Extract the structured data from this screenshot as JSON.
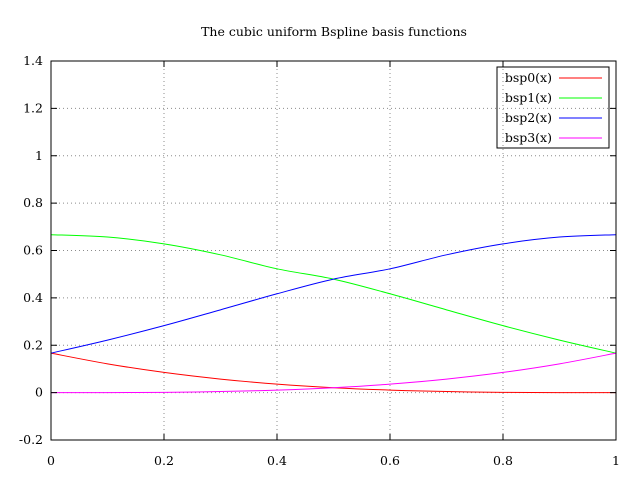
{
  "chart_data": {
    "type": "line",
    "title": "The cubic uniform Bspline basis functions",
    "xlabel": "",
    "ylabel": "",
    "xlim": [
      0,
      1
    ],
    "ylim": [
      -0.2,
      1.4
    ],
    "xticks": [
      0,
      0.2,
      0.4,
      0.6,
      0.8,
      1
    ],
    "xtick_labels": [
      "0",
      "0.2",
      "0.4",
      "0.6",
      "0.8",
      "1"
    ],
    "yticks": [
      -0.2,
      0,
      0.2,
      0.4,
      0.6,
      0.8,
      1,
      1.2,
      1.4
    ],
    "ytick_labels": [
      "-0.2",
      "0",
      "0.2",
      "0.4",
      "0.6",
      "0.8",
      "1",
      "1.2",
      "1.4"
    ],
    "grid": true,
    "legend_position": "top-right",
    "x": [
      0,
      0.1,
      0.2,
      0.3,
      0.4,
      0.5,
      0.6,
      0.7,
      0.8,
      0.9,
      1.0
    ],
    "series": [
      {
        "name": "bsp0(x)",
        "color": "#ff0000",
        "values": [
          0.1667,
          0.1215,
          0.0853,
          0.0572,
          0.036,
          0.0208,
          0.0107,
          0.0045,
          0.0013,
          0.0002,
          0
        ]
      },
      {
        "name": "bsp1(x)",
        "color": "#00ff00",
        "values": [
          0.6667,
          0.6568,
          0.628,
          0.5818,
          0.5227,
          0.4792,
          0.4173,
          0.3495,
          0.2827,
          0.2218,
          0.1667
        ]
      },
      {
        "name": "bsp2(x)",
        "color": "#0000ff",
        "values": [
          0.1667,
          0.2218,
          0.2827,
          0.3495,
          0.4173,
          0.4792,
          0.5227,
          0.5818,
          0.628,
          0.6568,
          0.6667
        ]
      },
      {
        "name": "bsp3(x)",
        "color": "#ff00ff",
        "values": [
          0,
          0.0002,
          0.0013,
          0.0045,
          0.0107,
          0.0208,
          0.036,
          0.0572,
          0.0853,
          0.1215,
          0.1667
        ]
      }
    ]
  }
}
